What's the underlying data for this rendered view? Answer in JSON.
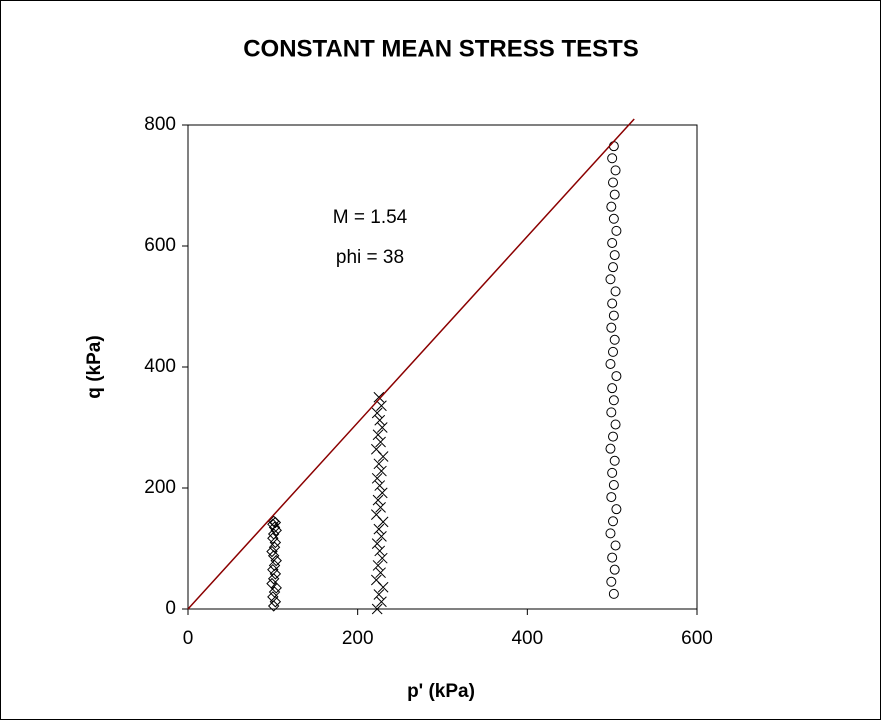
{
  "chart_data": {
    "type": "scatter",
    "title": "CONSTANT MEAN STRESS TESTS",
    "x_label": "p' (kPa)",
    "y_label": "q (kPa)",
    "annotations": [
      "M = 1.54",
      "phi = 38"
    ],
    "xlim": [
      0,
      600
    ],
    "xticks": [
      0,
      200,
      400,
      600
    ],
    "ylim": [
      0,
      800
    ],
    "yticks": [
      0,
      200,
      400,
      600,
      800
    ],
    "grid": false,
    "series": [
      {
        "color": "#000000",
        "marker": "diamond",
        "x": [
          101,
          103,
          100,
          102,
          104,
          99,
          101,
          103,
          100,
          102,
          104,
          101,
          99,
          102,
          103,
          100,
          101,
          104,
          102,
          100,
          103,
          101
        ],
        "values": [
          5,
          12,
          20,
          28,
          35,
          42,
          50,
          58,
          65,
          72,
          80,
          88,
          95,
          102,
          110,
          117,
          124,
          130,
          135,
          140,
          143,
          145
        ]
      },
      {
        "color": "#000000",
        "marker": "cross",
        "x": [
          223,
          228,
          225,
          230,
          222,
          227,
          224,
          229,
          226,
          223,
          228,
          225,
          230,
          222,
          227,
          224,
          229,
          226,
          223,
          228,
          225,
          230,
          222,
          227,
          224,
          229,
          226,
          223,
          228,
          225
        ],
        "values": [
          0,
          12,
          24,
          36,
          48,
          60,
          72,
          84,
          96,
          108,
          120,
          132,
          144,
          156,
          168,
          180,
          192,
          204,
          216,
          228,
          240,
          252,
          264,
          276,
          288,
          300,
          312,
          324,
          336,
          350
        ]
      },
      {
        "color": "#000000",
        "marker": "circle",
        "x": [
          502,
          499,
          503,
          500,
          504,
          498,
          501,
          505,
          499,
          502,
          500,
          503,
          498,
          501,
          504,
          499,
          502,
          500,
          505,
          498,
          501,
          503,
          499,
          502,
          500,
          504,
          498,
          501,
          503,
          500,
          505,
          502,
          499,
          503,
          501,
          504,
          500,
          502
        ],
        "values": [
          25,
          45,
          65,
          85,
          105,
          125,
          145,
          165,
          185,
          205,
          225,
          245,
          265,
          285,
          305,
          325,
          345,
          365,
          385,
          405,
          425,
          445,
          465,
          485,
          505,
          525,
          545,
          565,
          585,
          605,
          625,
          645,
          665,
          685,
          705,
          725,
          745,
          765
        ]
      },
      {
        "color": "#8b0000",
        "marker": "line",
        "x": [
          0,
          526
        ],
        "values": [
          0,
          810
        ]
      }
    ]
  }
}
